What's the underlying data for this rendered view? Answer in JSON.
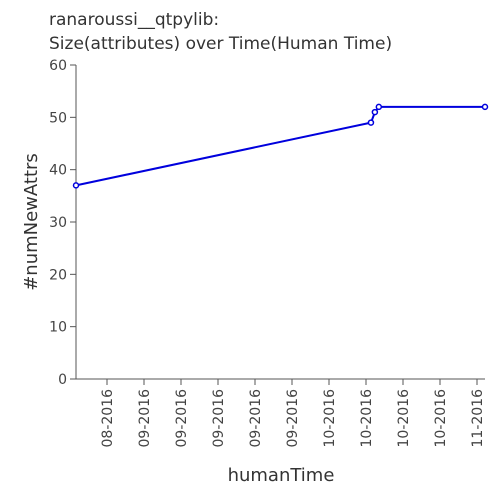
{
  "chart_data": {
    "type": "line",
    "title": "ranaroussi__qtpylib:",
    "subtitle": "Size(attributes) over Time(Human Time)",
    "xlabel": "humanTime",
    "ylabel": "#numNewAttrs",
    "ylim": [
      0,
      60
    ],
    "yticks": [
      0,
      10,
      20,
      30,
      40,
      50,
      60
    ],
    "xticks": [
      "08-2016",
      "09-2016",
      "09-2016",
      "09-2016",
      "09-2016",
      "09-2016",
      "10-2016",
      "10-2016",
      "10-2016",
      "10-2016",
      "11-2016"
    ],
    "grid": false,
    "legend": "none",
    "color": "#0000dd",
    "series": [
      {
        "x": [
          "2016-07-20",
          "2016-10-03",
          "2016-10-04",
          "2016-10-05",
          "2016-11-01"
        ],
        "values": [
          37,
          49,
          51,
          52,
          52
        ]
      }
    ]
  }
}
